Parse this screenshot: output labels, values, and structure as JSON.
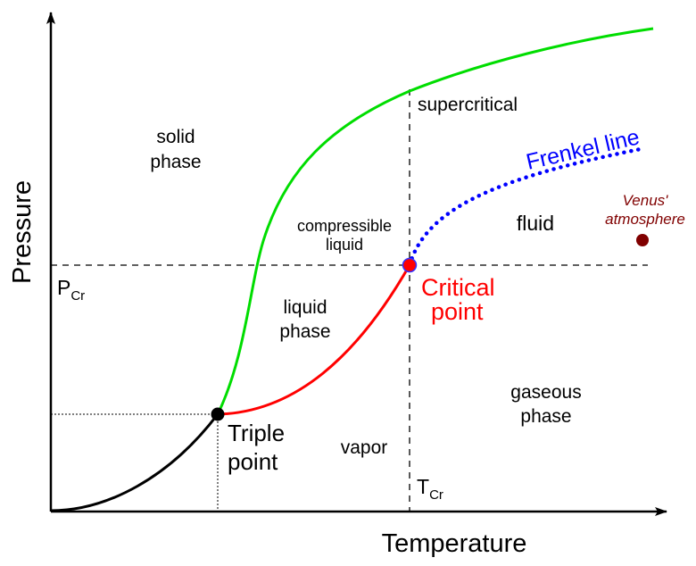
{
  "axes": {
    "xlabel": "Temperature",
    "ylabel": "Pressure",
    "t_cr_main": "T",
    "t_cr_sub": "Cr",
    "p_cr_main": "P",
    "p_cr_sub": "Cr"
  },
  "regions": {
    "solid": [
      "solid",
      "phase"
    ],
    "supercritical": "supercritical",
    "compressible": [
      "compressible",
      "liquid"
    ],
    "fluid": "fluid",
    "liquid": [
      "liquid",
      "phase"
    ],
    "gaseous": [
      "gaseous",
      "phase"
    ],
    "vapor": "vapor"
  },
  "annotations": {
    "frenkel": "Frenkel line",
    "venus": [
      "Venus'",
      "atmosphere"
    ],
    "critical": [
      "Critical",
      "point"
    ],
    "triple": [
      "Triple",
      "point"
    ]
  },
  "colors": {
    "melting": "#00dd00",
    "boiling": "#ff0000",
    "sublimation": "#000000",
    "frenkel": "#0000ff",
    "venus": "#800000"
  }
}
